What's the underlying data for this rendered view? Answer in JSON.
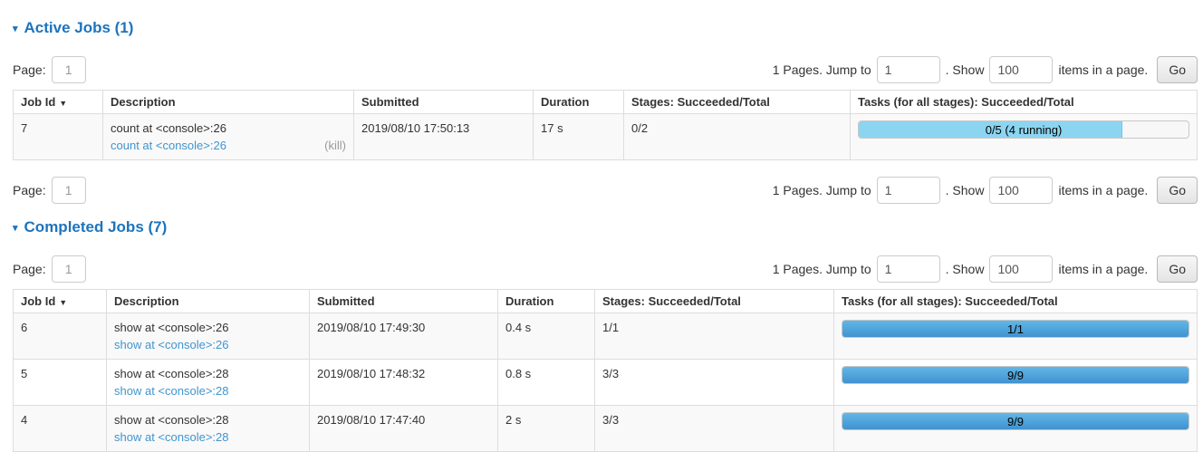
{
  "colors": {
    "section_title_blue": "#1c74bd",
    "link_blue": "#4095ce",
    "bar_running_fill": "#8cd5f1",
    "bar_done_top": "#61b7e7",
    "bar_done_bottom": "#4092cf",
    "table_border": "#dddddd",
    "stripe_row": "#f9f9f9"
  },
  "icons": {
    "collapse_arrow": "▾",
    "sort_desc": "▼"
  },
  "pagination": {
    "page_label": "Page:",
    "page_value": "1",
    "pages_jump_text": "1 Pages. Jump to",
    "jump_value": "1",
    "show_text": ". Show",
    "show_value": "100",
    "items_text": "items in a page.",
    "go_label": "Go"
  },
  "active": {
    "title": "Active Jobs (1)",
    "headers": {
      "job_id": "Job Id",
      "description": "Description",
      "submitted": "Submitted",
      "duration": "Duration",
      "stages": "Stages: Succeeded/Total",
      "tasks": "Tasks (for all stages): Succeeded/Total"
    },
    "rows": [
      {
        "job_id": "7",
        "description": "count at <console>:26",
        "description_link": "count at <console>:26",
        "kill_label": "(kill)",
        "submitted": "2019/08/10 17:50:13",
        "duration": "17 s",
        "stages": "0/2",
        "tasks_label": "0/5 (4 running)",
        "progress_pct": 80
      }
    ]
  },
  "completed": {
    "title": "Completed Jobs (7)",
    "headers": {
      "job_id": "Job Id",
      "description": "Description",
      "submitted": "Submitted",
      "duration": "Duration",
      "stages": "Stages: Succeeded/Total",
      "tasks": "Tasks (for all stages): Succeeded/Total"
    },
    "rows": [
      {
        "job_id": "6",
        "description": "show at <console>:26",
        "description_link": "show at <console>:26",
        "submitted": "2019/08/10 17:49:30",
        "duration": "0.4 s",
        "stages": "1/1",
        "tasks_label": "1/1",
        "progress_pct": 100
      },
      {
        "job_id": "5",
        "description": "show at <console>:28",
        "description_link": "show at <console>:28",
        "submitted": "2019/08/10 17:48:32",
        "duration": "0.8 s",
        "stages": "3/3",
        "tasks_label": "9/9",
        "progress_pct": 100
      },
      {
        "job_id": "4",
        "description": "show at <console>:28",
        "description_link": "show at <console>:28",
        "submitted": "2019/08/10 17:47:40",
        "duration": "2 s",
        "stages": "3/3",
        "tasks_label": "9/9",
        "progress_pct": 100
      }
    ]
  }
}
